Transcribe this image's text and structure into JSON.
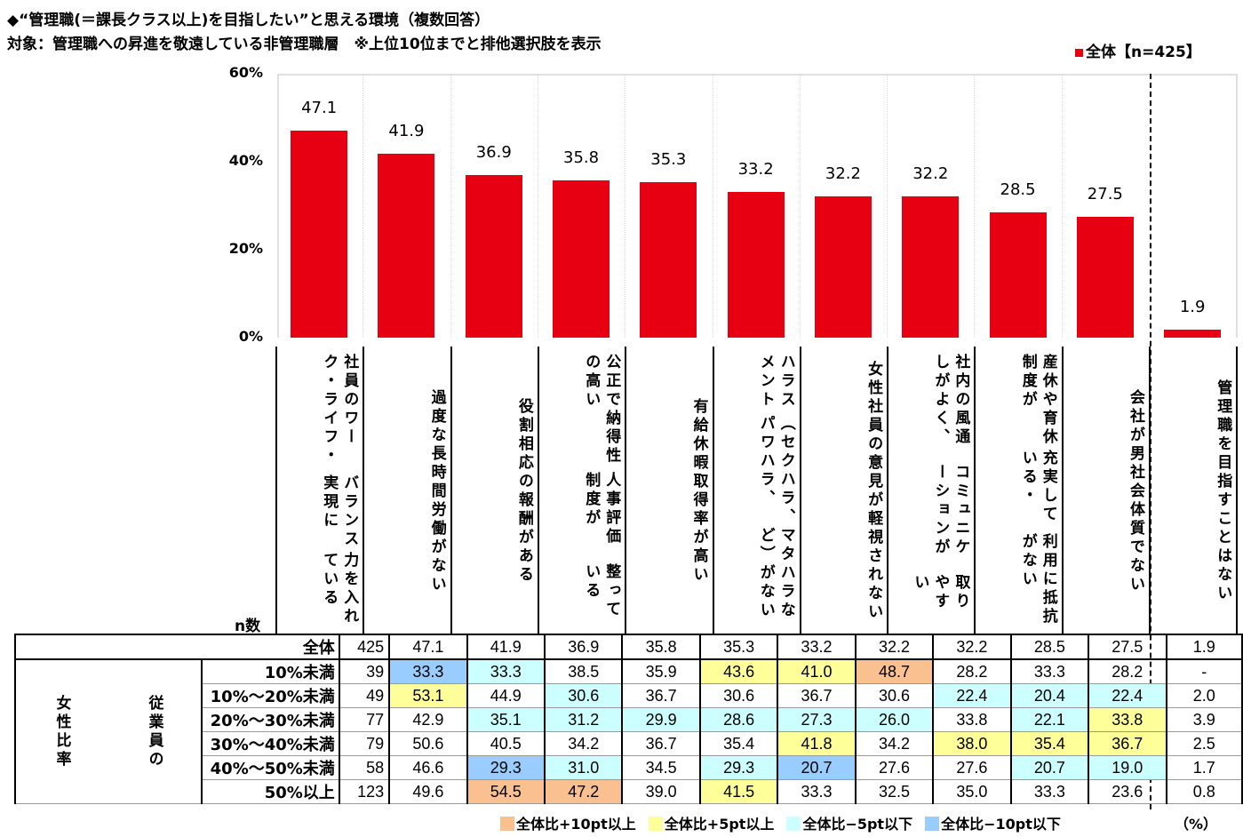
{
  "title": "◆“管理職(＝課長クラス以上)を目指したい”と思える環境（複数回答）",
  "subtitle": "対象：管理職への昇進を敬遠している非管理職層　※上位10位までと排他選択肢を表示",
  "legend_top": "全体【n=425】",
  "n_label": "n数",
  "unit": "（%）",
  "colors": {
    "bar": "#e60012",
    "o": "#fac090",
    "y": "#ffff99",
    "c": "#ccffff",
    "b": "#99ccff"
  },
  "legend_bottom": [
    {
      "code": "o",
      "label": "全体比+10pt以上"
    },
    {
      "code": "y",
      "label": "全体比+5pt以上"
    },
    {
      "code": "c",
      "label": "全体比−5pt以下"
    },
    {
      "code": "b",
      "label": "全体比−10pt以下"
    }
  ],
  "chart_data": {
    "type": "bar",
    "title": "“管理職(＝課長クラス以上)を目指したい”と思える環境（複数回答）",
    "ylim": [
      0,
      60
    ],
    "yticks": [
      "0%",
      "20%",
      "40%",
      "60%"
    ],
    "series": [
      {
        "name": "全体【n=425】"
      }
    ],
    "categories": [
      [
        "社員のワーク・ライフ・",
        "バランス実現に",
        "力を入れている"
      ],
      [
        "過度な長時間労働がない"
      ],
      [
        "役割相応の報酬がある"
      ],
      [
        "公正で納得性の高い",
        "人事評価制度が",
        "整っている"
      ],
      [
        "有給休暇取得率が高い"
      ],
      [
        "ハラスメント",
        "（セクハラ、パワハラ、",
        "マタハラなど）がない"
      ],
      [
        "女性社員の意見が",
        "軽視されない"
      ],
      [
        "社内の風通しがよく、",
        "コミュニケーションが",
        "取りやすい"
      ],
      [
        "産休や育休制度が",
        "充実している・",
        "利用に抵抗がない"
      ],
      [
        "会社が男社会体質でない"
      ],
      [
        "管理職を目指すことはない"
      ]
    ],
    "values": [
      47.1,
      41.9,
      36.9,
      35.8,
      35.3,
      33.2,
      32.2,
      32.2,
      28.5,
      27.5,
      1.9
    ]
  },
  "table": {
    "total": {
      "label": "全体",
      "n": "425",
      "values": [
        "47.1",
        "41.9",
        "36.9",
        "35.8",
        "35.3",
        "33.2",
        "32.2",
        "32.2",
        "28.5",
        "27.5",
        "1.9"
      ]
    },
    "group_label_outer": "女性比率",
    "group_label_inner": "従業員の",
    "rows": [
      {
        "label": "10%未満",
        "n": "39",
        "values": [
          "33.3",
          "33.3",
          "38.5",
          "35.9",
          "43.6",
          "41.0",
          "48.7",
          "28.2",
          "33.3",
          "28.2",
          "-"
        ],
        "hl": [
          "b",
          "c",
          "",
          "",
          "y",
          "y",
          "o",
          "",
          "",
          "",
          ""
        ]
      },
      {
        "label": "10%〜20%未満",
        "n": "49",
        "values": [
          "53.1",
          "44.9",
          "30.6",
          "36.7",
          "30.6",
          "36.7",
          "30.6",
          "22.4",
          "20.4",
          "22.4",
          "2.0"
        ],
        "hl": [
          "y",
          "",
          "c",
          "",
          "",
          "",
          "",
          "c",
          "c",
          "c",
          ""
        ]
      },
      {
        "label": "20%〜30%未満",
        "n": "77",
        "values": [
          "42.9",
          "35.1",
          "31.2",
          "29.9",
          "28.6",
          "27.3",
          "26.0",
          "33.8",
          "22.1",
          "33.8",
          "3.9"
        ],
        "hl": [
          "",
          "c",
          "c",
          "c",
          "c",
          "c",
          "c",
          "",
          "c",
          "y",
          ""
        ]
      },
      {
        "label": "30%〜40%未満",
        "n": "79",
        "values": [
          "50.6",
          "40.5",
          "34.2",
          "36.7",
          "35.4",
          "41.8",
          "34.2",
          "38.0",
          "35.4",
          "36.7",
          "2.5"
        ],
        "hl": [
          "",
          "",
          "",
          "",
          "",
          "y",
          "",
          "y",
          "y",
          "y",
          ""
        ]
      },
      {
        "label": "40%〜50%未満",
        "n": "58",
        "values": [
          "46.6",
          "29.3",
          "31.0",
          "34.5",
          "29.3",
          "20.7",
          "27.6",
          "27.6",
          "20.7",
          "19.0",
          "1.7"
        ],
        "hl": [
          "",
          "b",
          "c",
          "",
          "c",
          "b",
          "",
          "",
          "c",
          "c",
          ""
        ]
      },
      {
        "label": "50%以上",
        "n": "123",
        "values": [
          "49.6",
          "54.5",
          "47.2",
          "39.0",
          "41.5",
          "33.3",
          "32.5",
          "35.0",
          "33.3",
          "23.6",
          "0.8"
        ],
        "hl": [
          "",
          "o",
          "o",
          "",
          "y",
          "",
          "",
          "",
          "",
          "",
          ""
        ]
      }
    ]
  }
}
